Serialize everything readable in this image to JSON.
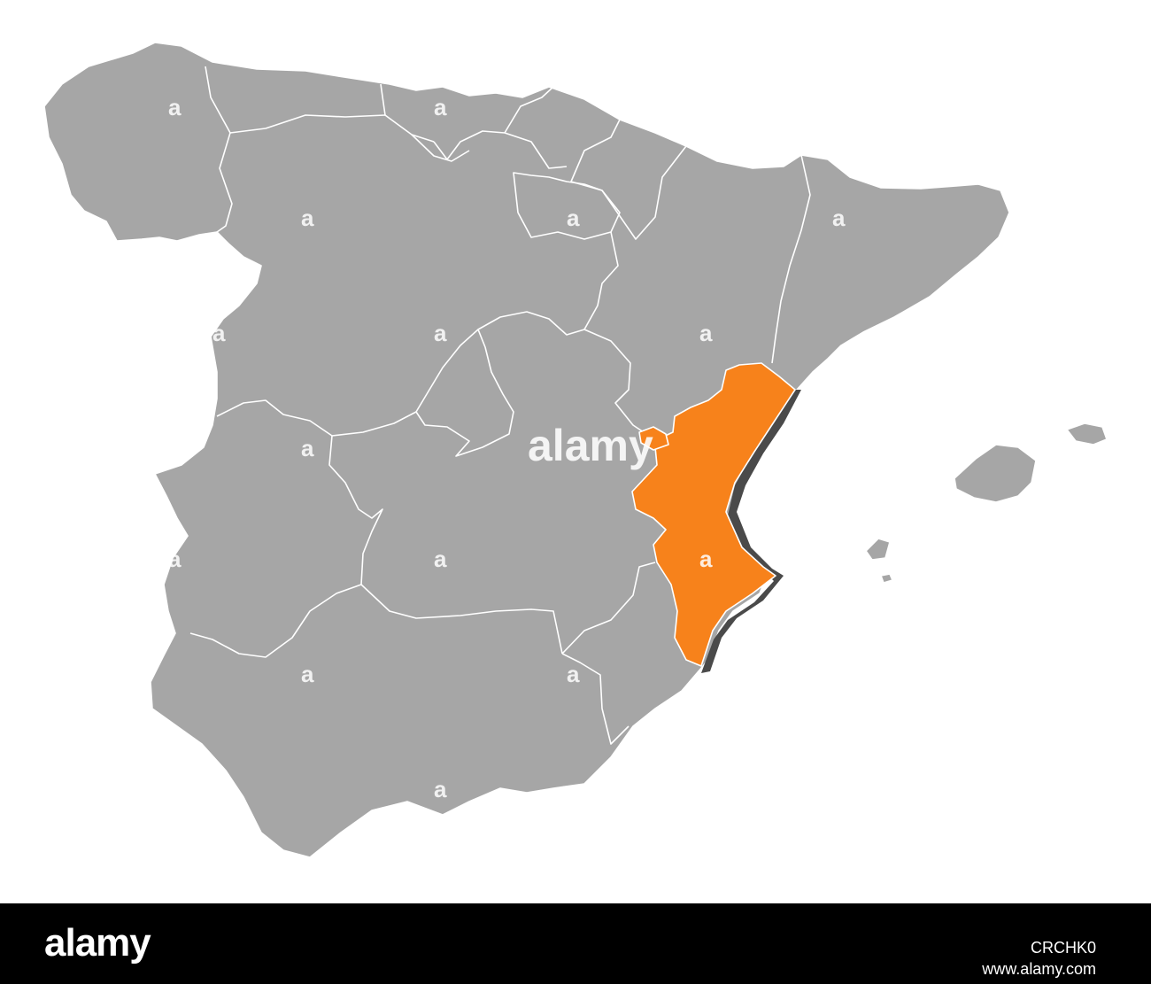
{
  "watermark": {
    "center_text": "alamy",
    "tile_text": "a"
  },
  "map": {
    "regions": [
      "Galicia",
      "Asturias",
      "Cantabria",
      "Basque Country",
      "Navarre",
      "La Rioja",
      "Aragon",
      "Catalonia",
      "Castile and Leon",
      "Madrid",
      "Castile-La Mancha",
      "Extremadura",
      "Andalusia",
      "Murcia",
      "Valencian Community",
      "Balearic Islands"
    ],
    "highlighted_region": "Valencian Community",
    "colors": {
      "land": "#a6a6a6",
      "borders": "#ffffff",
      "highlight": "#f7821b",
      "highlight_shadow": "#4a4a4a",
      "background": "#ffffff"
    }
  },
  "footer": {
    "brand": "alamy",
    "image_id": "CRCHK0",
    "url": "www.alamy.com",
    "background": "#000000"
  }
}
